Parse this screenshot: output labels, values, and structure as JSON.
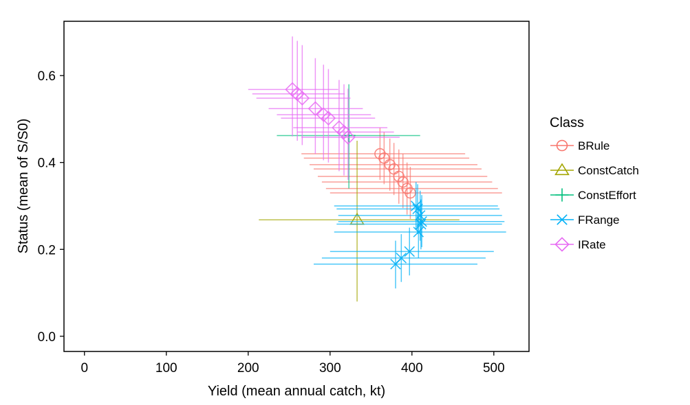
{
  "chart_data": {
    "type": "scatter",
    "title": "",
    "xlabel": "Yield (mean annual catch, kt)",
    "ylabel": "Status (mean of S/S0)",
    "xlim": [
      -25,
      543
    ],
    "ylim": [
      -0.035,
      0.725
    ],
    "xticks": [
      0,
      100,
      200,
      300,
      400,
      500
    ],
    "yticks": [
      0.0,
      0.2,
      0.4,
      0.6
    ],
    "xtick_labels": [
      "0",
      "100",
      "200",
      "300",
      "400",
      "500"
    ],
    "ytick_labels": [
      "0.0",
      "0.2",
      "0.4",
      "0.6"
    ],
    "grid": false,
    "legend": {
      "title": "Class",
      "placement": "right",
      "entries": [
        {
          "label": "BRule",
          "marker": "circle",
          "color": "#F8766D"
        },
        {
          "label": "ConstCatch",
          "marker": "triangle",
          "color": "#A3A500"
        },
        {
          "label": "ConstEffort",
          "marker": "plus",
          "color": "#00BF7D"
        },
        {
          "label": "FRange",
          "marker": "x",
          "color": "#00B0F6"
        },
        {
          "label": "IRate",
          "marker": "diamond",
          "color": "#E76BF3"
        }
      ]
    },
    "series": [
      {
        "name": "BRule",
        "marker": "circle",
        "color": "#F8766D",
        "points": [
          {
            "x": 361,
            "y": 0.42,
            "xerr": [
              265,
              465
            ],
            "yerr": [
              0.36,
              0.48
            ]
          },
          {
            "x": 366,
            "y": 0.41,
            "xerr": [
              268,
              470
            ],
            "yerr": [
              0.35,
              0.47
            ]
          },
          {
            "x": 373,
            "y": 0.395,
            "xerr": [
              275,
              480
            ],
            "yerr": [
              0.335,
              0.455
            ]
          },
          {
            "x": 378,
            "y": 0.385,
            "xerr": [
              280,
              485
            ],
            "yerr": [
              0.325,
              0.445
            ]
          },
          {
            "x": 384,
            "y": 0.368,
            "xerr": [
              285,
              492
            ],
            "yerr": [
              0.305,
              0.43
            ]
          },
          {
            "x": 389,
            "y": 0.355,
            "xerr": [
              290,
              498
            ],
            "yerr": [
              0.295,
              0.42
            ]
          },
          {
            "x": 394,
            "y": 0.34,
            "xerr": [
              295,
              505
            ],
            "yerr": [
              0.28,
              0.4
            ]
          },
          {
            "x": 398,
            "y": 0.33,
            "xerr": [
              300,
              510
            ],
            "yerr": [
              0.27,
              0.39
            ]
          }
        ]
      },
      {
        "name": "ConstCatch",
        "marker": "triangle",
        "color": "#A3A500",
        "points": [
          {
            "x": 333,
            "y": 0.268,
            "xerr": [
              213,
              458
            ],
            "yerr": [
              0.08,
              0.45
            ]
          }
        ]
      },
      {
        "name": "ConstEffort",
        "marker": "plus",
        "color": "#00BF7D",
        "points": [
          {
            "x": 323,
            "y": 0.462,
            "xerr": [
              235,
              410
            ],
            "yerr": [
              0.34,
              0.58
            ]
          }
        ]
      },
      {
        "name": "FRange",
        "marker": "x",
        "color": "#00B0F6",
        "points": [
          {
            "x": 380,
            "y": 0.166,
            "xerr": [
              280,
              480
            ],
            "yerr": [
              0.11,
              0.22
            ]
          },
          {
            "x": 387,
            "y": 0.18,
            "xerr": [
              290,
              490
            ],
            "yerr": [
              0.125,
              0.235
            ]
          },
          {
            "x": 397,
            "y": 0.195,
            "xerr": [
              300,
              500
            ],
            "yerr": [
              0.14,
              0.25
            ]
          },
          {
            "x": 408,
            "y": 0.24,
            "xerr": [
              305,
              515
            ],
            "yerr": [
              0.18,
              0.3
            ]
          },
          {
            "x": 411,
            "y": 0.258,
            "xerr": [
              308,
              510
            ],
            "yerr": [
              0.2,
              0.315
            ]
          },
          {
            "x": 412,
            "y": 0.264,
            "xerr": [
              310,
              513
            ],
            "yerr": [
              0.205,
              0.325
            ]
          },
          {
            "x": 410,
            "y": 0.278,
            "xerr": [
              310,
              510
            ],
            "yerr": [
              0.22,
              0.335
            ]
          },
          {
            "x": 407,
            "y": 0.293,
            "xerr": [
              308,
              507
            ],
            "yerr": [
              0.235,
              0.35
            ]
          },
          {
            "x": 405,
            "y": 0.3,
            "xerr": [
              305,
              505
            ],
            "yerr": [
              0.245,
              0.355
            ]
          }
        ]
      },
      {
        "name": "IRate",
        "marker": "diamond",
        "color": "#E76BF3",
        "points": [
          {
            "x": 254,
            "y": 0.568,
            "xerr": [
              200,
              310
            ],
            "yerr": [
              0.46,
              0.69
            ]
          },
          {
            "x": 260,
            "y": 0.558,
            "xerr": [
              205,
              318
            ],
            "yerr": [
              0.45,
              0.68
            ]
          },
          {
            "x": 266,
            "y": 0.548,
            "xerr": [
              210,
              325
            ],
            "yerr": [
              0.44,
              0.67
            ]
          },
          {
            "x": 282,
            "y": 0.524,
            "xerr": [
              225,
              340
            ],
            "yerr": [
              0.42,
              0.64
            ]
          },
          {
            "x": 292,
            "y": 0.51,
            "xerr": [
              235,
              350
            ],
            "yerr": [
              0.405,
              0.625
            ]
          },
          {
            "x": 298,
            "y": 0.502,
            "xerr": [
              240,
              355
            ],
            "yerr": [
              0.4,
              0.615
            ]
          },
          {
            "x": 311,
            "y": 0.48,
            "xerr": [
              255,
              370
            ],
            "yerr": [
              0.38,
              0.59
            ]
          },
          {
            "x": 317,
            "y": 0.47,
            "xerr": [
              260,
              378
            ],
            "yerr": [
              0.37,
              0.58
            ]
          },
          {
            "x": 322,
            "y": 0.458,
            "xerr": [
              265,
              385
            ],
            "yerr": [
              0.36,
              0.57
            ]
          }
        ]
      }
    ]
  }
}
